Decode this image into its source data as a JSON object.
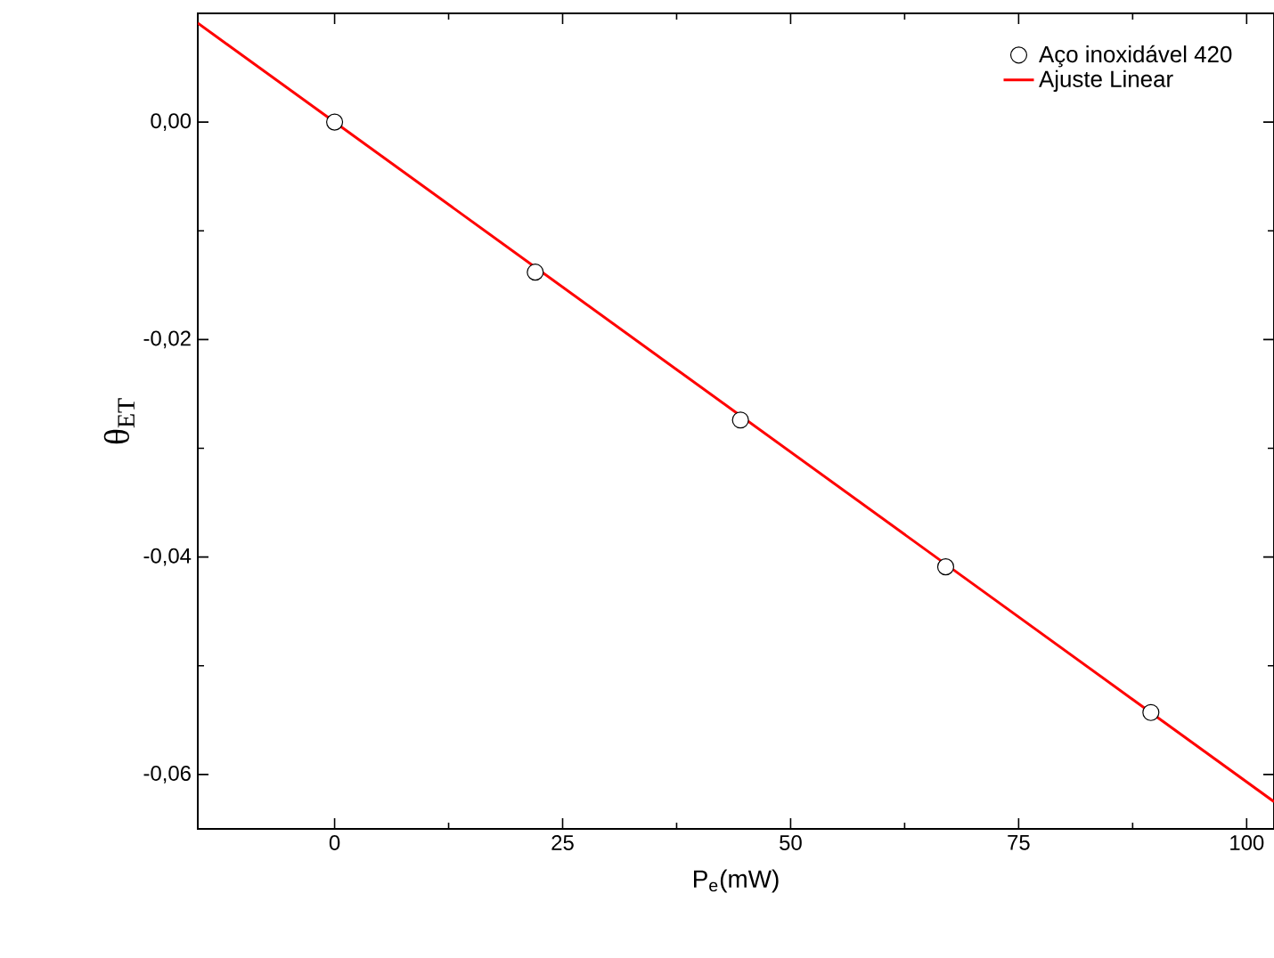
{
  "chart_data": {
    "type": "scatter",
    "xlabel": "P$_{e}$(mW)",
    "ylabel": "θ$_{ET}$",
    "xlim": [
      -15,
      103
    ],
    "ylim": [
      -0.065,
      0.01
    ],
    "xticks": [
      0,
      25,
      50,
      75,
      100
    ],
    "yticks": [
      {
        "value": 0,
        "label": "0,00"
      },
      {
        "value": -0.02,
        "label": "-0,02"
      },
      {
        "value": -0.04,
        "label": "-0,04"
      },
      {
        "value": -0.06,
        "label": "-0,06"
      }
    ],
    "series": [
      {
        "name": "Aço inoxidável 420",
        "color": "#000000",
        "marker": "circle",
        "x": [
          0,
          22,
          44.5,
          67,
          89.5
        ],
        "values": [
          0,
          -0.0138,
          -0.0274,
          -0.0409,
          -0.0543
        ]
      },
      {
        "name": "Ajuste Linear",
        "type": "line",
        "color": "#ff0000",
        "marker": "none",
        "line_style": "solid",
        "x": [
          -15,
          103
        ],
        "values": [
          0.0091,
          -0.0625
        ]
      }
    ],
    "legend": "top right",
    "grid": false
  }
}
